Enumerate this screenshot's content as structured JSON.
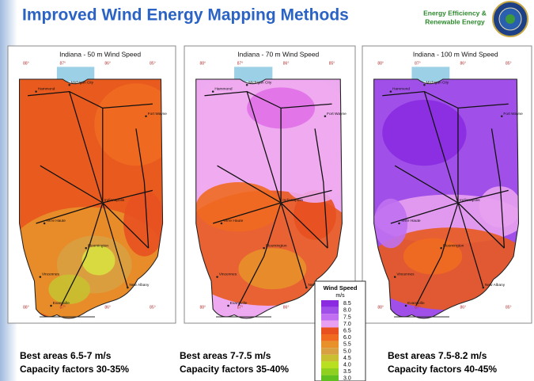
{
  "header": {
    "title": "Improved Wind Energy Mapping Methods",
    "logo_line1": "Energy Efficiency &",
    "logo_line2": "Renewable Energy"
  },
  "maps": [
    {
      "title": "Indiana - 50 m Wind Speed",
      "longitudes": [
        "88°",
        "87°",
        "86°",
        "85°"
      ],
      "cities": [
        "Michigan City",
        "Hammond",
        "Fort Wayne",
        "Indianapolis",
        "Terre Haute",
        "Bloomington",
        "Vincennes",
        "Evansville",
        "New Albany"
      ],
      "caption_line1": "Best areas 6.5-7 m/s",
      "caption_line2": "Capacity factors 30-35%"
    },
    {
      "title": "Indiana - 70 m Wind Speed",
      "longitudes": [
        "88°",
        "87°",
        "86°",
        "85°"
      ],
      "cities": [
        "Michigan City",
        "Hammond",
        "Fort Wayne",
        "Indianapolis",
        "Terre Haute",
        "Bloomington",
        "Vincennes",
        "Evansville",
        "New Albany"
      ],
      "caption_line1": "Best areas 7-7.5 m/s",
      "caption_line2": "Capacity factors 35-40%"
    },
    {
      "title": "Indiana - 100 m Wind Speed",
      "longitudes": [
        "88°",
        "87°",
        "86°",
        "85°"
      ],
      "cities": [
        "Michigan City",
        "Hammond",
        "Fort Wayne",
        "Indianapolis",
        "Terre Haute",
        "Bloomington",
        "Vincennes",
        "Evansville",
        "New Albany"
      ],
      "caption_line1": "Best areas 7.5-8.2 m/s",
      "caption_line2": "Capacity factors 40-45%"
    }
  ],
  "legend": {
    "title": "Wind Speed",
    "unit": "m/s",
    "levels": [
      "8.5",
      "8.0",
      "7.5",
      "7.0",
      "6.5",
      "6.0",
      "5.5",
      "5.0",
      "4.5",
      "4.0",
      "3.5",
      "3.0"
    ],
    "colors": [
      "#8a2be2",
      "#a050e8",
      "#c070f0",
      "#e8a0f0",
      "#e85020",
      "#f06a20",
      "#e8902a",
      "#d8a040",
      "#c8c030",
      "#b8e020",
      "#90d020",
      "#60c020"
    ]
  }
}
